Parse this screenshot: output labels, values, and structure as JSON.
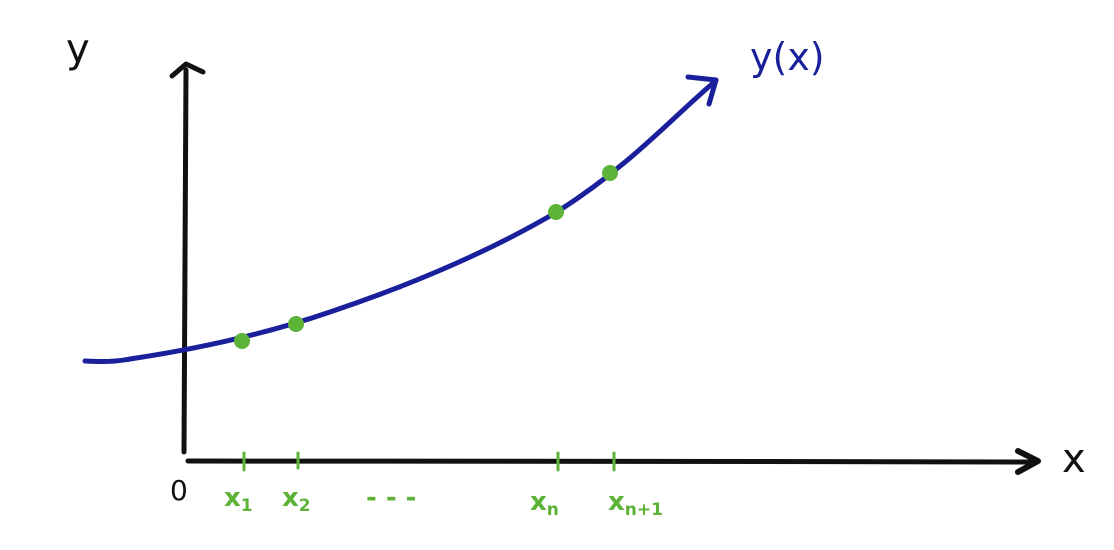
{
  "labels": {
    "y_axis": "y",
    "x_axis": "x",
    "origin": "0",
    "curve": "y(x)",
    "ticks": [
      {
        "base": "x",
        "sub": "1"
      },
      {
        "base": "x",
        "sub": "2"
      },
      {
        "base": "x",
        "sub": "n"
      },
      {
        "base": "x",
        "sub": "n+1"
      }
    ],
    "ellipsis": "- - -"
  },
  "colors": {
    "axis": "#111111",
    "curve": "#1a1f9c",
    "points": "#5cb338"
  }
}
